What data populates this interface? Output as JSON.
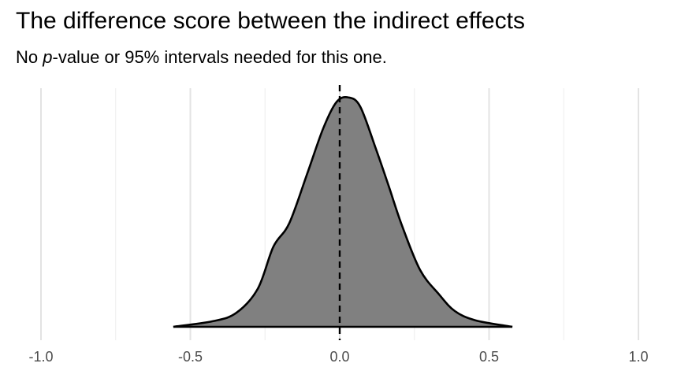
{
  "chart_data": {
    "type": "area",
    "title": "The difference score between the indirect effects",
    "subtitle": {
      "before": "No ",
      "italic": "p",
      "after": "-value or 95% intervals needed for this one."
    },
    "xlabel": "",
    "ylabel": "",
    "xlim": [
      -1.05,
      1.05
    ],
    "ylim": [
      0,
      2.5
    ],
    "x_ticks": [
      -1.0,
      -0.5,
      0.0,
      0.5,
      1.0
    ],
    "x_tick_labels": [
      "-1.0",
      "-0.5",
      "0.0",
      "0.5",
      "1.0"
    ],
    "x_minor_grid": [
      -0.75,
      -0.25,
      0.25,
      0.75
    ],
    "grid": "vertical only",
    "reference_line": {
      "x": 0,
      "style": "dashed",
      "color": "#000000"
    },
    "fill_color": "#808080",
    "line_color": "#000000",
    "x": [
      -0.557,
      -0.425,
      -0.346,
      -0.274,
      -0.222,
      -0.169,
      -0.108,
      -0.055,
      -0.011,
      0.029,
      0.069,
      0.121,
      0.164,
      0.208,
      0.269,
      0.332,
      0.385,
      0.454,
      0.578
    ],
    "density": [
      0,
      0.06,
      0.15,
      0.41,
      0.86,
      1.11,
      1.65,
      2.13,
      2.41,
      2.46,
      2.36,
      1.91,
      1.51,
      1.09,
      0.61,
      0.35,
      0.17,
      0.07,
      0
    ]
  }
}
